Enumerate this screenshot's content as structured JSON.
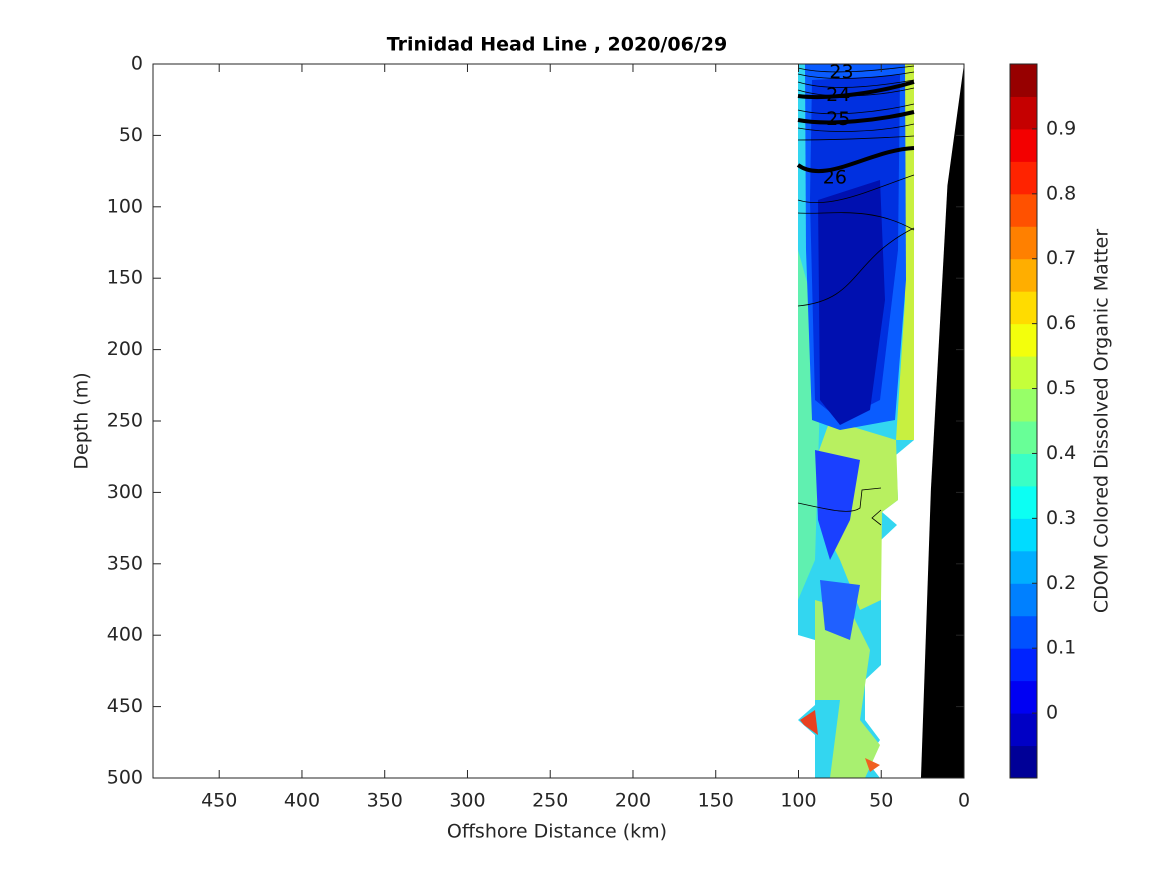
{
  "chart_data": {
    "type": "contour-section",
    "title": "Trinidad Head Line , 2020/06/29",
    "x_label": "Offshore Distance (km)",
    "y_label": "Depth (m)",
    "xlim": [
      490,
      0
    ],
    "xticks": [
      450,
      400,
      350,
      300,
      250,
      200,
      150,
      100,
      50,
      0
    ],
    "ylim": [
      0,
      500
    ],
    "yticks": [
      0,
      50,
      100,
      150,
      200,
      250,
      300,
      350,
      400,
      450,
      500
    ],
    "contour_labels": [
      {
        "text": "23",
        "x": 74,
        "depth": 6
      },
      {
        "text": "24",
        "x": 76,
        "depth": 22
      },
      {
        "text": "25",
        "x": 76,
        "depth": 39
      },
      {
        "text": "26",
        "x": 78,
        "depth": 80
      }
    ],
    "bottom_profile": {
      "x": [
        0,
        10,
        20,
        26
      ],
      "depth": [
        0,
        85,
        298,
        500
      ],
      "color": "#000000"
    },
    "colorbar": {
      "label": "CDOM Colored Dissolved Organic Matter",
      "colormap": "jet",
      "lim": [
        -0.1,
        1.0
      ],
      "levels": 22,
      "ticks": [
        0,
        0.1,
        0.2,
        0.3,
        0.4,
        0.5,
        0.6,
        0.7,
        0.8,
        0.9
      ]
    }
  }
}
